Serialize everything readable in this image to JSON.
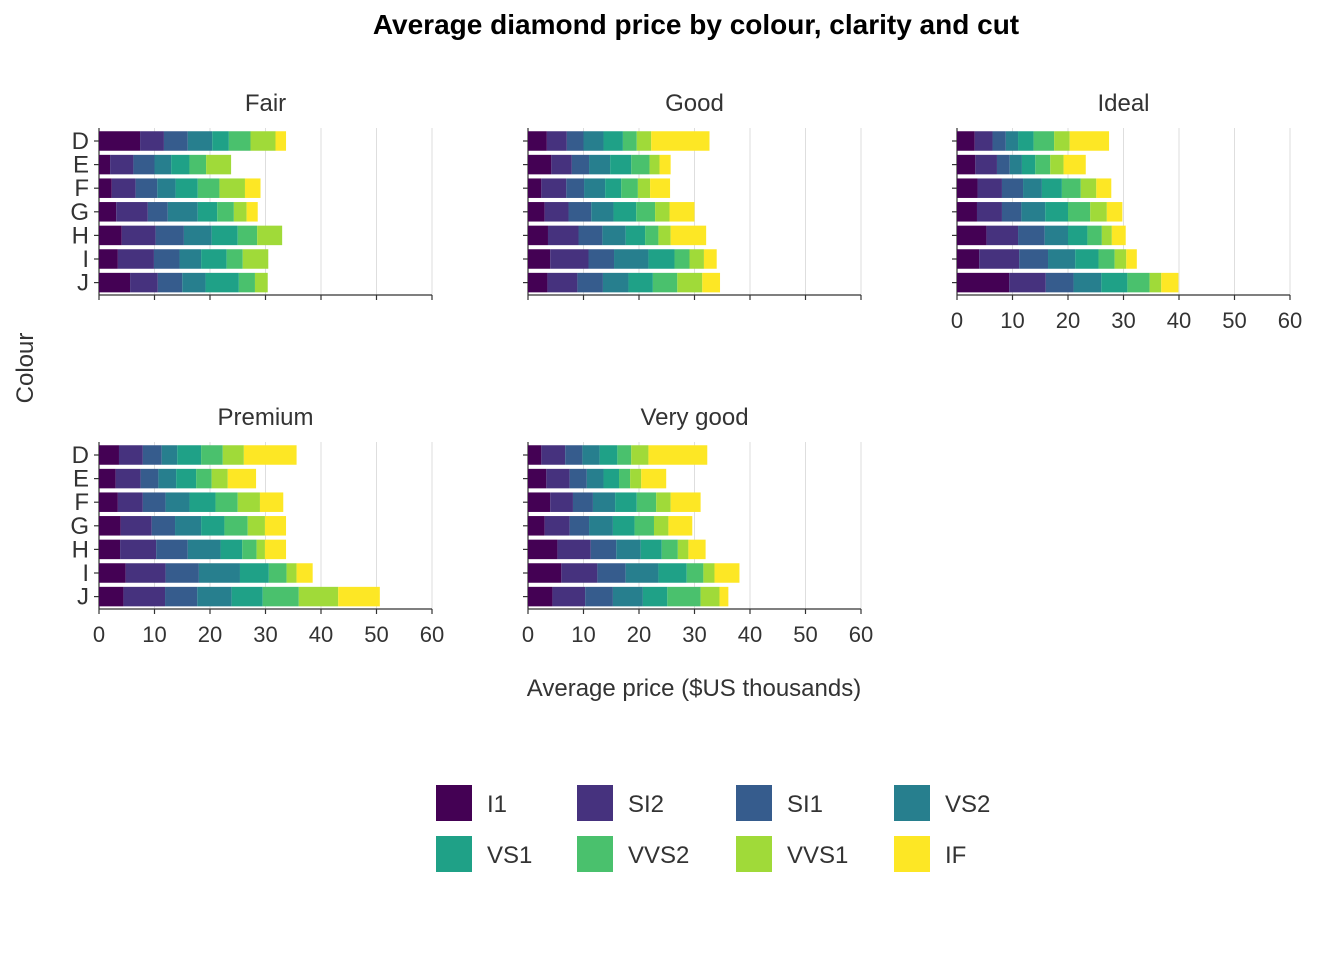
{
  "chart_data": {
    "type": "bar",
    "orientation": "horizontal",
    "stacked": true,
    "title": "Average diamond price by colour, clarity and cut",
    "xlabel": "Average price ($US thousands)",
    "ylabel": "Colour",
    "xlim": [
      0,
      60
    ],
    "xticks": [
      "0",
      "10",
      "20",
      "30",
      "40",
      "50",
      "60"
    ],
    "grid": "vertical",
    "legend_position": "bottom",
    "categories": [
      "D",
      "E",
      "F",
      "G",
      "H",
      "I",
      "J"
    ],
    "clarity_levels": [
      "I1",
      "SI2",
      "SI1",
      "VS2",
      "VS1",
      "VVS2",
      "VVS1",
      "IF"
    ],
    "colors": [
      "#440154",
      "#46327e",
      "#365c8d",
      "#277f8e",
      "#1fa187",
      "#4ac16d",
      "#a0da39",
      "#fde725"
    ],
    "panels": [
      {
        "name": "Fair",
        "values": {
          "D": [
            7.4,
            4.3,
            4.3,
            4.4,
            3.0,
            3.9,
            4.5,
            1.9
          ],
          "E": [
            2.0,
            4.2,
            3.8,
            3.0,
            3.3,
            3.0,
            4.5,
            0
          ],
          "F": [
            2.3,
            4.3,
            3.9,
            3.3,
            4.0,
            3.9,
            4.6,
            2.8
          ],
          "G": [
            3.1,
            5.7,
            3.6,
            5.4,
            3.5,
            3.0,
            2.3,
            2.0
          ],
          "H": [
            4.1,
            6.1,
            5.1,
            5.0,
            4.7,
            3.5,
            4.5,
            0
          ],
          "I": [
            3.4,
            6.5,
            4.6,
            3.9,
            4.6,
            2.9,
            4.6,
            0
          ],
          "J": [
            5.6,
            5.0,
            4.4,
            4.2,
            6.0,
            2.9,
            2.3,
            0
          ]
        }
      },
      {
        "name": "Good",
        "values": {
          "D": [
            3.4,
            3.6,
            3.0,
            3.6,
            3.5,
            2.5,
            2.6,
            10.5
          ],
          "E": [
            4.2,
            3.7,
            3.1,
            3.8,
            3.8,
            3.3,
            1.8,
            2.0
          ],
          "F": [
            2.4,
            4.5,
            3.2,
            3.8,
            2.9,
            3.0,
            2.2,
            3.6
          ],
          "G": [
            3.0,
            4.3,
            4.1,
            4.0,
            4.1,
            3.4,
            2.6,
            4.5
          ],
          "H": [
            3.6,
            5.5,
            4.3,
            4.2,
            3.5,
            2.4,
            2.2,
            6.4
          ],
          "I": [
            4.0,
            6.9,
            4.6,
            6.2,
            4.7,
            2.7,
            2.6,
            2.3
          ],
          "J": [
            3.5,
            5.4,
            4.6,
            4.6,
            4.4,
            4.4,
            4.5,
            3.2
          ]
        }
      },
      {
        "name": "Ideal",
        "values": {
          "D": [
            3.2,
            3.2,
            2.4,
            2.2,
            2.8,
            3.7,
            2.8,
            7.1
          ],
          "E": [
            3.3,
            3.9,
            2.3,
            2.2,
            2.4,
            2.7,
            2.4,
            4.0
          ],
          "F": [
            3.7,
            4.4,
            3.8,
            3.4,
            3.6,
            3.4,
            2.8,
            2.7
          ],
          "G": [
            3.6,
            4.5,
            3.5,
            4.3,
            4.1,
            4.0,
            3.0,
            2.8
          ],
          "H": [
            5.3,
            5.7,
            4.8,
            4.2,
            3.5,
            2.6,
            1.8,
            2.5
          ],
          "I": [
            4.0,
            7.2,
            5.2,
            4.9,
            4.2,
            2.9,
            2.1,
            1.9
          ],
          "J": [
            9.4,
            6.6,
            5.0,
            5.0,
            4.7,
            4.0,
            2.1,
            3.1
          ]
        }
      },
      {
        "name": "Premium",
        "values": {
          "D": [
            3.6,
            4.3,
            3.4,
            2.8,
            4.3,
            3.9,
            3.8,
            9.5
          ],
          "E": [
            3.0,
            4.5,
            3.2,
            3.2,
            3.6,
            2.8,
            2.9,
            5.1
          ],
          "F": [
            3.4,
            4.5,
            4.1,
            4.3,
            4.7,
            4.0,
            4.0,
            4.2
          ],
          "G": [
            3.9,
            5.6,
            4.2,
            4.7,
            4.2,
            4.2,
            3.1,
            3.8
          ],
          "H": [
            3.8,
            6.5,
            5.7,
            5.9,
            3.9,
            2.6,
            1.5,
            3.8
          ],
          "I": [
            4.8,
            7.2,
            6.0,
            7.4,
            5.2,
            3.2,
            1.8,
            2.9
          ],
          "J": [
            4.4,
            7.5,
            5.8,
            6.2,
            5.6,
            6.5,
            7.1,
            7.5
          ]
        }
      },
      {
        "name": "Very good",
        "values": {
          "D": [
            2.4,
            4.3,
            3.1,
            3.1,
            3.2,
            2.5,
            3.1,
            10.6
          ],
          "E": [
            3.3,
            4.2,
            3.1,
            3.0,
            2.8,
            2.0,
            2.0,
            4.5
          ],
          "F": [
            4.0,
            4.1,
            3.6,
            4.0,
            3.9,
            3.5,
            2.6,
            5.4
          ],
          "G": [
            3.0,
            4.5,
            3.5,
            4.3,
            3.9,
            3.5,
            2.6,
            4.3
          ],
          "H": [
            5.3,
            6.0,
            4.6,
            4.4,
            3.8,
            2.9,
            1.9,
            3.1
          ],
          "I": [
            6.0,
            6.5,
            5.1,
            5.9,
            5.1,
            3.0,
            2.0,
            4.5
          ],
          "J": [
            4.4,
            5.9,
            5.0,
            5.4,
            4.4,
            6.0,
            3.4,
            1.6
          ]
        }
      }
    ]
  }
}
